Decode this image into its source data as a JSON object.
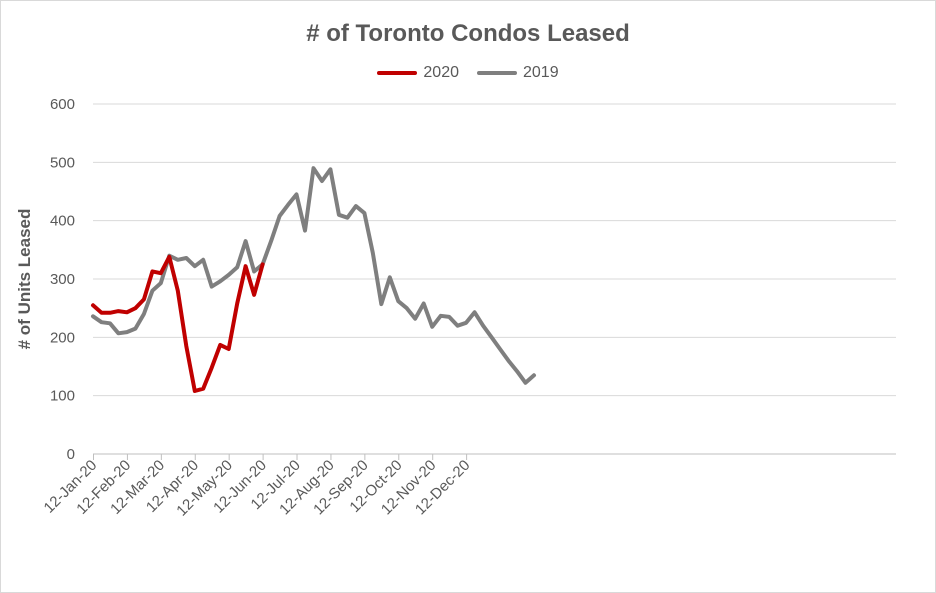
{
  "chart_data": {
    "type": "line",
    "title": "# of Toronto Condos Leased",
    "ylabel": "# of Units Leased",
    "xlabel": "",
    "ylim": [
      0,
      600
    ],
    "y_ticks": [
      0,
      100,
      200,
      300,
      400,
      500,
      600
    ],
    "x_ticks": [
      "12-Jan-20",
      "12-Feb-20",
      "12-Mar-20",
      "12-Apr-20",
      "12-May-20",
      "12-Jun-20",
      "12-Jul-20",
      "12-Aug-20",
      "12-Sep-20",
      "12-Oct-20",
      "12-Nov-20",
      "12-Dec-20"
    ],
    "grid": true,
    "legend_position": "top-center",
    "series": [
      {
        "name": "2020",
        "color": "#c00000",
        "values": [
          255,
          242,
          242,
          245,
          243,
          250,
          265,
          313,
          310,
          338,
          280,
          185,
          108,
          112,
          148,
          187,
          180,
          258,
          322,
          273,
          325
        ]
      },
      {
        "name": "2019",
        "color": "#7f7f7f",
        "values": [
          236,
          226,
          224,
          207,
          209,
          215,
          240,
          280,
          293,
          340,
          333,
          336,
          322,
          333,
          287,
          296,
          307,
          320,
          365,
          313,
          325,
          365,
          408,
          427,
          445,
          383,
          490,
          468,
          488,
          410,
          405,
          425,
          413,
          345,
          257,
          303,
          262,
          250,
          232,
          258,
          218,
          237,
          235,
          220,
          225,
          243,
          220,
          200,
          180,
          160,
          142,
          122,
          135
        ]
      }
    ]
  }
}
